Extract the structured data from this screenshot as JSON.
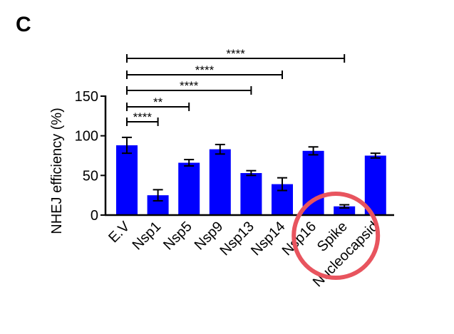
{
  "panel_label": "C",
  "colors": {
    "bar": "#0000ff",
    "axis": "#000000",
    "annotation_circle": "#e8545e"
  },
  "chart_data": {
    "type": "bar",
    "title": "",
    "xlabel": "",
    "ylabel": "NHEJ efficiency (%)",
    "ylim": [
      0,
      150
    ],
    "yticks": [
      0,
      50,
      100,
      150
    ],
    "categories": [
      "E.V",
      "Nsp1",
      "Nsp5",
      "Nsp9",
      "Nsp13",
      "Nsp14",
      "Nsp16",
      "Spike",
      "Nucleocapsid"
    ],
    "values": [
      88,
      25,
      66,
      83,
      53,
      39,
      81,
      11,
      75
    ],
    "errors": [
      10,
      7,
      4,
      6,
      3,
      8,
      5,
      2,
      3
    ],
    "grid": false,
    "legend": "none",
    "significance": [
      {
        "from": "E.V",
        "to": "Nsp1",
        "label": "****"
      },
      {
        "from": "E.V",
        "to": "Nsp5",
        "label": "**"
      },
      {
        "from": "E.V",
        "to": "Nsp13",
        "label": "****"
      },
      {
        "from": "E.V",
        "to": "Nsp14",
        "label": "****"
      },
      {
        "from": "E.V",
        "to": "Spike",
        "label": "****"
      }
    ],
    "highlight": {
      "shape": "circle",
      "category": "Spike"
    }
  }
}
